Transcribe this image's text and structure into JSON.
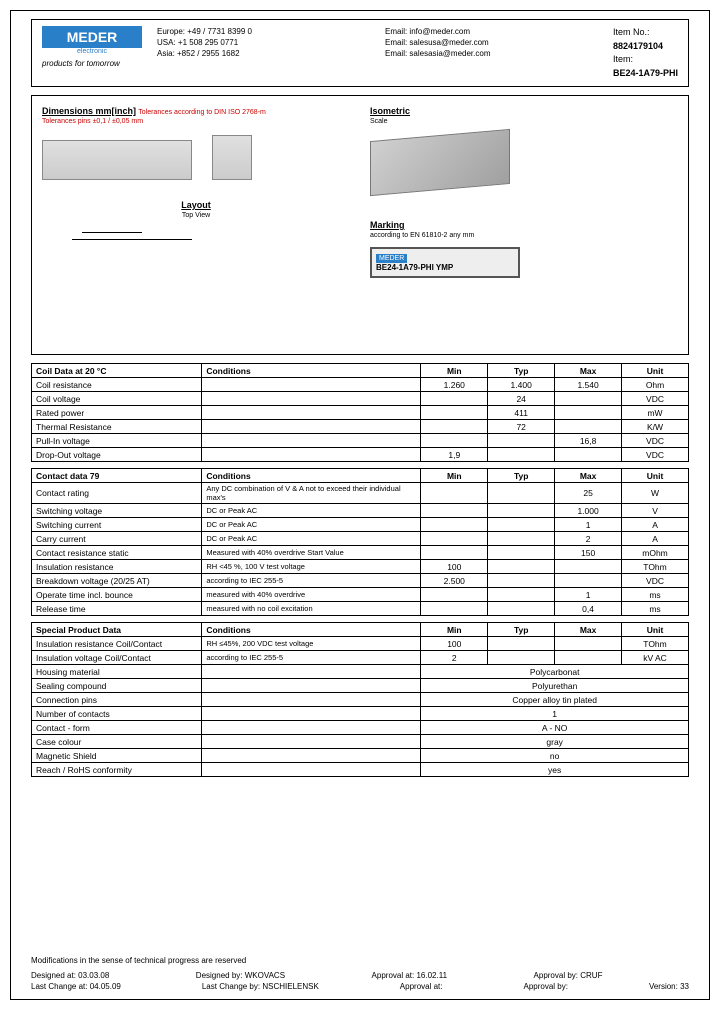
{
  "header": {
    "logo_text": "MEDER",
    "logo_sub": "electronic",
    "slogan": "products for tomorrow",
    "contacts": {
      "europe": "Europe: +49 / 7731 8399 0",
      "usa": "USA: +1 508 295 0771",
      "asia": "Asia: +852 / 2955 1682",
      "email1": "Email: info@meder.com",
      "email2": "Email: salesusa@meder.com",
      "email3": "Email: salesasia@meder.com"
    },
    "item_no_label": "Item No.:",
    "item_no": "8824179104",
    "item_label": "Item:",
    "item": "BE24-1A79-PHI"
  },
  "diagram": {
    "dim_title": "Dimensions mm[inch]",
    "dim_sub1": "Tolerances according to DIN ISO 2768-m",
    "dim_sub2": "Tolerances pins ±0,1 / ±0,05 mm",
    "layout_title": "Layout",
    "layout_sub": "Top View",
    "iso_title": "Isometric",
    "iso_sub": "Scale",
    "marking_title": "Marking",
    "marking_sub": "according to EN 61810-2 any mm",
    "marking_text": "BE24-1A79-PHI YMP"
  },
  "table1": {
    "title": "Coil Data at 20 °C",
    "headers": [
      "Conditions",
      "Min",
      "Typ",
      "Max",
      "Unit"
    ],
    "rows": [
      {
        "label": "Coil resistance",
        "cond": "",
        "min": "1.260",
        "typ": "1.400",
        "max": "1.540",
        "unit": "Ohm"
      },
      {
        "label": "Coil voltage",
        "cond": "",
        "min": "",
        "typ": "24",
        "max": "",
        "unit": "VDC"
      },
      {
        "label": "Rated power",
        "cond": "",
        "min": "",
        "typ": "411",
        "max": "",
        "unit": "mW"
      },
      {
        "label": "Thermal Resistance",
        "cond": "",
        "min": "",
        "typ": "72",
        "max": "",
        "unit": "K/W"
      },
      {
        "label": "Pull-In voltage",
        "cond": "",
        "min": "",
        "typ": "",
        "max": "16,8",
        "unit": "VDC"
      },
      {
        "label": "Drop-Out voltage",
        "cond": "",
        "min": "1,9",
        "typ": "",
        "max": "",
        "unit": "VDC"
      }
    ]
  },
  "table2": {
    "title": "Contact data  79",
    "headers": [
      "Conditions",
      "Min",
      "Typ",
      "Max",
      "Unit"
    ],
    "rows": [
      {
        "label": "Contact rating",
        "cond": "Any DC combination of V & A not to exceed their individual max's",
        "min": "",
        "typ": "",
        "max": "25",
        "unit": "W"
      },
      {
        "label": "Switching voltage",
        "cond": "DC or Peak AC",
        "min": "",
        "typ": "",
        "max": "1.000",
        "unit": "V"
      },
      {
        "label": "Switching current",
        "cond": "DC or Peak AC",
        "min": "",
        "typ": "",
        "max": "1",
        "unit": "A"
      },
      {
        "label": "Carry current",
        "cond": "DC or Peak AC",
        "min": "",
        "typ": "",
        "max": "2",
        "unit": "A"
      },
      {
        "label": "Contact resistance static",
        "cond": "Measured with 40% overdrive Start Value",
        "min": "",
        "typ": "",
        "max": "150",
        "unit": "mOhm"
      },
      {
        "label": "Insulation resistance",
        "cond": "RH <45 %, 100 V test voltage",
        "min": "100",
        "typ": "",
        "max": "",
        "unit": "TOhm"
      },
      {
        "label": "Breakdown voltage  (20/25 AT)",
        "cond": "according to IEC 255-5",
        "min": "2.500",
        "typ": "",
        "max": "",
        "unit": "VDC"
      },
      {
        "label": "Operate time incl. bounce",
        "cond": "measured with 40% overdrive",
        "min": "",
        "typ": "",
        "max": "1",
        "unit": "ms"
      },
      {
        "label": "Release time",
        "cond": "measured with no coil excitation",
        "min": "",
        "typ": "",
        "max": "0,4",
        "unit": "ms"
      }
    ]
  },
  "table3": {
    "title": "Special Product Data",
    "headers": [
      "Conditions",
      "Min",
      "Typ",
      "Max",
      "Unit"
    ],
    "rows": [
      {
        "label": "Insulation resistance Coil/Contact",
        "cond": "RH ≤45%, 200 VDC test voltage",
        "min": "100",
        "typ": "",
        "max": "",
        "unit": "TOhm"
      },
      {
        "label": "Insulation voltage Coil/Contact",
        "cond": "according to IEC 255-5",
        "min": "2",
        "typ": "",
        "max": "",
        "unit": "kV AC"
      }
    ],
    "spanrows": [
      {
        "label": "Housing material",
        "val": "Polycarbonat"
      },
      {
        "label": "Sealing compound",
        "val": "Polyurethan"
      },
      {
        "label": "Connection pins",
        "val": "Copper alloy tin plated"
      },
      {
        "label": "Number of contacts",
        "val": "1"
      },
      {
        "label": "Contact - form",
        "val": "A - NO"
      },
      {
        "label": "Case colour",
        "val": "gray"
      },
      {
        "label": "Magnetic Shield",
        "val": "no"
      },
      {
        "label": "Reach / RoHS conformity",
        "val": "yes"
      }
    ]
  },
  "footer": {
    "note": "Modifications in the sense of technical progress are reserved",
    "designed_at_lbl": "Designed at:",
    "designed_at": "03.03.08",
    "designed_by_lbl": "Designed by:",
    "designed_by": "WKOVACS",
    "approval_at_lbl": "Approval at:",
    "approval_at": "16.02.11",
    "approval_by_lbl": "Approval by:",
    "approval_by": "CRUF",
    "last_change_at_lbl": "Last Change at:",
    "last_change_at": "04.05.09",
    "last_change_by_lbl": "Last Change by:",
    "last_change_by": "NSCHIELENSK",
    "approval_at2_lbl": "Approval at:",
    "approval_by2_lbl": "Approval by:",
    "version_lbl": "Version:",
    "version": "33"
  }
}
